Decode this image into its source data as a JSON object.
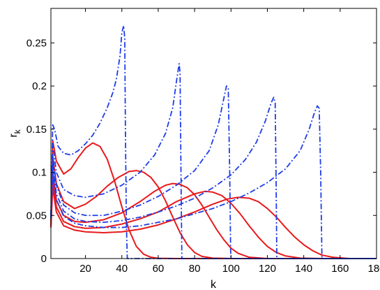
{
  "chart_data": {
    "type": "line",
    "xlabel": "k",
    "ylabel": {
      "base": "r",
      "subscript": "k"
    },
    "xlim": [
      1,
      180
    ],
    "ylim": [
      0,
      0.29
    ],
    "xticks": [
      20,
      40,
      60,
      80,
      100,
      120,
      140,
      160,
      180
    ],
    "yticks": [
      0,
      0.05,
      0.1,
      0.15,
      0.2,
      0.25
    ],
    "ytick_labels": [
      "0",
      "0.05",
      "0.1",
      "0.15",
      "0.2",
      "0.25"
    ],
    "grid": false,
    "legend": null,
    "colors": {
      "solid": "#e8191c",
      "dashdot": "#1f3de6"
    },
    "series": [
      {
        "style": "solid",
        "color": "#e8191c",
        "points": [
          [
            1,
            0.045
          ],
          [
            2,
            0.137
          ],
          [
            4,
            0.113
          ],
          [
            8,
            0.098
          ],
          [
            12,
            0.104
          ],
          [
            16,
            0.117
          ],
          [
            20,
            0.128
          ],
          [
            24,
            0.134
          ],
          [
            28,
            0.13
          ],
          [
            32,
            0.115
          ],
          [
            36,
            0.09
          ],
          [
            40,
            0.06
          ],
          [
            44,
            0.033
          ],
          [
            48,
            0.014
          ],
          [
            52,
            0.005
          ],
          [
            56,
            0.0015
          ],
          [
            60,
            0.0003
          ],
          [
            70,
            0
          ],
          [
            180,
            0
          ]
        ]
      },
      {
        "style": "solid",
        "color": "#e8191c",
        "points": [
          [
            1,
            0.04
          ],
          [
            2,
            0.118
          ],
          [
            4,
            0.087
          ],
          [
            8,
            0.066
          ],
          [
            14,
            0.058
          ],
          [
            20,
            0.063
          ],
          [
            26,
            0.072
          ],
          [
            32,
            0.084
          ],
          [
            38,
            0.094
          ],
          [
            44,
            0.101
          ],
          [
            48,
            0.102
          ],
          [
            52,
            0.1
          ],
          [
            56,
            0.094
          ],
          [
            60,
            0.083
          ],
          [
            64,
            0.067
          ],
          [
            68,
            0.048
          ],
          [
            72,
            0.03
          ],
          [
            76,
            0.016
          ],
          [
            80,
            0.007
          ],
          [
            84,
            0.0025
          ],
          [
            90,
            0.0005
          ],
          [
            100,
            0
          ],
          [
            180,
            0
          ]
        ]
      },
      {
        "style": "solid",
        "color": "#e8191c",
        "points": [
          [
            1,
            0.038
          ],
          [
            2,
            0.1
          ],
          [
            4,
            0.068
          ],
          [
            8,
            0.05
          ],
          [
            14,
            0.043
          ],
          [
            20,
            0.042
          ],
          [
            30,
            0.045
          ],
          [
            40,
            0.053
          ],
          [
            50,
            0.066
          ],
          [
            58,
            0.078
          ],
          [
            64,
            0.085
          ],
          [
            68,
            0.087
          ],
          [
            72,
            0.086
          ],
          [
            76,
            0.082
          ],
          [
            80,
            0.074
          ],
          [
            84,
            0.062
          ],
          [
            88,
            0.048
          ],
          [
            92,
            0.034
          ],
          [
            96,
            0.022
          ],
          [
            100,
            0.012
          ],
          [
            104,
            0.006
          ],
          [
            110,
            0.0015
          ],
          [
            120,
            0
          ],
          [
            180,
            0
          ]
        ]
      },
      {
        "style": "solid",
        "color": "#e8191c",
        "points": [
          [
            1,
            0.037
          ],
          [
            2,
            0.09
          ],
          [
            4,
            0.06
          ],
          [
            8,
            0.043
          ],
          [
            14,
            0.037
          ],
          [
            20,
            0.035
          ],
          [
            30,
            0.036
          ],
          [
            40,
            0.04
          ],
          [
            50,
            0.046
          ],
          [
            60,
            0.054
          ],
          [
            70,
            0.066
          ],
          [
            80,
            0.075
          ],
          [
            86,
            0.078
          ],
          [
            90,
            0.077
          ],
          [
            95,
            0.073
          ],
          [
            100,
            0.064
          ],
          [
            105,
            0.052
          ],
          [
            110,
            0.038
          ],
          [
            115,
            0.025
          ],
          [
            120,
            0.014
          ],
          [
            125,
            0.007
          ],
          [
            130,
            0.003
          ],
          [
            138,
            0.0005
          ],
          [
            150,
            0
          ],
          [
            180,
            0
          ]
        ]
      },
      {
        "style": "solid",
        "color": "#e8191c",
        "points": [
          [
            1,
            0.036
          ],
          [
            2,
            0.082
          ],
          [
            4,
            0.054
          ],
          [
            8,
            0.038
          ],
          [
            14,
            0.033
          ],
          [
            20,
            0.031
          ],
          [
            30,
            0.03
          ],
          [
            40,
            0.031
          ],
          [
            50,
            0.034
          ],
          [
            60,
            0.039
          ],
          [
            70,
            0.046
          ],
          [
            80,
            0.054
          ],
          [
            90,
            0.063
          ],
          [
            98,
            0.069
          ],
          [
            104,
            0.071
          ],
          [
            110,
            0.07
          ],
          [
            115,
            0.066
          ],
          [
            120,
            0.058
          ],
          [
            125,
            0.048
          ],
          [
            130,
            0.036
          ],
          [
            135,
            0.025
          ],
          [
            140,
            0.016
          ],
          [
            145,
            0.009
          ],
          [
            150,
            0.004
          ],
          [
            156,
            0.0015
          ],
          [
            165,
            0
          ],
          [
            180,
            0
          ]
        ]
      },
      {
        "style": "dashdot",
        "color": "#1f3de6",
        "points": [
          [
            1,
            0.05
          ],
          [
            2,
            0.155
          ],
          [
            3,
            0.15
          ],
          [
            5,
            0.13
          ],
          [
            8,
            0.122
          ],
          [
            12,
            0.12
          ],
          [
            16,
            0.125
          ],
          [
            20,
            0.133
          ],
          [
            24,
            0.143
          ],
          [
            28,
            0.157
          ],
          [
            32,
            0.175
          ],
          [
            35,
            0.192
          ],
          [
            37,
            0.208
          ],
          [
            39,
            0.235
          ],
          [
            40,
            0.262
          ],
          [
            41,
            0.27
          ],
          [
            41.6,
            0.255
          ],
          [
            42,
            0.14
          ],
          [
            42.5,
            0.04
          ],
          [
            43,
            0
          ],
          [
            180,
            0
          ]
        ]
      },
      {
        "style": "dashdot",
        "color": "#1f3de6",
        "points": [
          [
            1,
            0.05
          ],
          [
            2,
            0.133
          ],
          [
            4,
            0.1
          ],
          [
            8,
            0.08
          ],
          [
            14,
            0.073
          ],
          [
            20,
            0.071
          ],
          [
            30,
            0.075
          ],
          [
            40,
            0.085
          ],
          [
            50,
            0.1
          ],
          [
            58,
            0.12
          ],
          [
            64,
            0.145
          ],
          [
            68,
            0.175
          ],
          [
            70,
            0.205
          ],
          [
            71.5,
            0.226
          ],
          [
            72,
            0.215
          ],
          [
            72.6,
            0.08
          ],
          [
            73,
            0
          ],
          [
            180,
            0
          ]
        ]
      },
      {
        "style": "dashdot",
        "color": "#1f3de6",
        "points": [
          [
            1,
            0.048
          ],
          [
            2,
            0.12
          ],
          [
            4,
            0.085
          ],
          [
            8,
            0.062
          ],
          [
            14,
            0.053
          ],
          [
            20,
            0.05
          ],
          [
            30,
            0.05
          ],
          [
            40,
            0.055
          ],
          [
            50,
            0.062
          ],
          [
            60,
            0.072
          ],
          [
            70,
            0.085
          ],
          [
            80,
            0.102
          ],
          [
            88,
            0.125
          ],
          [
            93,
            0.155
          ],
          [
            96,
            0.185
          ],
          [
            97.5,
            0.2
          ],
          [
            98.5,
            0.198
          ],
          [
            99.3,
            0.1
          ],
          [
            99.8,
            0.01
          ],
          [
            100,
            0
          ],
          [
            180,
            0
          ]
        ]
      },
      {
        "style": "dashdot",
        "color": "#1f3de6",
        "points": [
          [
            1,
            0.047
          ],
          [
            2,
            0.11
          ],
          [
            4,
            0.075
          ],
          [
            8,
            0.055
          ],
          [
            14,
            0.046
          ],
          [
            20,
            0.043
          ],
          [
            30,
            0.042
          ],
          [
            40,
            0.044
          ],
          [
            50,
            0.048
          ],
          [
            60,
            0.054
          ],
          [
            70,
            0.061
          ],
          [
            80,
            0.07
          ],
          [
            90,
            0.082
          ],
          [
            100,
            0.097
          ],
          [
            108,
            0.115
          ],
          [
            114,
            0.135
          ],
          [
            119,
            0.16
          ],
          [
            122,
            0.18
          ],
          [
            123.5,
            0.187
          ],
          [
            124.3,
            0.18
          ],
          [
            124.8,
            0.09
          ],
          [
            125.2,
            0
          ],
          [
            180,
            0
          ]
        ]
      },
      {
        "style": "dashdot",
        "color": "#1f3de6",
        "points": [
          [
            1,
            0.046
          ],
          [
            2,
            0.102
          ],
          [
            4,
            0.068
          ],
          [
            8,
            0.049
          ],
          [
            14,
            0.041
          ],
          [
            20,
            0.038
          ],
          [
            30,
            0.036
          ],
          [
            40,
            0.036
          ],
          [
            50,
            0.038
          ],
          [
            60,
            0.042
          ],
          [
            70,
            0.046
          ],
          [
            80,
            0.052
          ],
          [
            90,
            0.058
          ],
          [
            100,
            0.066
          ],
          [
            110,
            0.076
          ],
          [
            120,
            0.088
          ],
          [
            130,
            0.104
          ],
          [
            138,
            0.125
          ],
          [
            143,
            0.15
          ],
          [
            146,
            0.17
          ],
          [
            147.5,
            0.177
          ],
          [
            148.5,
            0.174
          ],
          [
            149.3,
            0.1
          ],
          [
            150,
            0
          ],
          [
            180,
            0
          ]
        ]
      }
    ]
  }
}
